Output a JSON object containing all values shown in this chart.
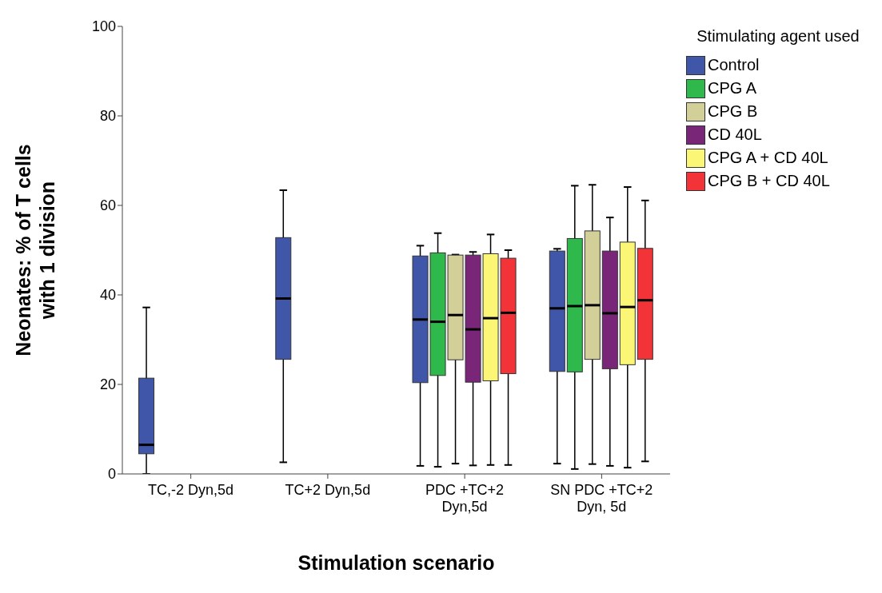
{
  "chart_data": {
    "type": "box",
    "xlabel": "Stimulation scenario",
    "ylabel": "Neonates: % of T cells with 1 division",
    "legend_title": "Stimulating agent used",
    "legend": "right",
    "grid": false,
    "categories": [
      "TC,-2 Dyn,5d",
      "TC+2 Dyn,5d",
      "PDC +TC+2 Dyn,5d",
      "SN PDC +TC+2 Dyn, 5d"
    ],
    "ylim": [
      0,
      100
    ],
    "yticks": [
      0,
      20,
      40,
      60,
      80,
      100
    ],
    "series": [
      {
        "name": "Control",
        "color": "#3f56a9",
        "boxes": [
          {
            "low": 0,
            "q1": 4.5,
            "median": 6.5,
            "q3": 21.4,
            "high": 37.2
          },
          {
            "low": 2.6,
            "q1": 25.6,
            "median": 39.2,
            "q3": 52.8,
            "high": 63.4
          },
          {
            "low": 1.8,
            "q1": 20.4,
            "median": 34.5,
            "q3": 48.7,
            "high": 51
          },
          {
            "low": 2.3,
            "q1": 22.9,
            "median": 37,
            "q3": 49.8,
            "high": 50.3
          }
        ]
      },
      {
        "name": "CPG A",
        "color": "#2fb84b",
        "boxes": [
          null,
          null,
          {
            "low": 1.6,
            "q1": 22,
            "median": 34,
            "q3": 49.4,
            "high": 53.8
          },
          {
            "low": 1.1,
            "q1": 22.8,
            "median": 37.5,
            "q3": 52.6,
            "high": 64.4
          }
        ]
      },
      {
        "name": "CPG B",
        "color": "#d3cf98",
        "boxes": [
          null,
          null,
          {
            "low": 2.3,
            "q1": 25.5,
            "median": 35.5,
            "q3": 48.9,
            "high": 49
          },
          {
            "low": 2.2,
            "q1": 25.6,
            "median": 37.7,
            "q3": 54.3,
            "high": 64.6
          }
        ]
      },
      {
        "name": "CD 40L",
        "color": "#7a2678",
        "boxes": [
          null,
          null,
          {
            "low": 1.9,
            "q1": 20.5,
            "median": 32.3,
            "q3": 48.9,
            "high": 49.6
          },
          {
            "low": 1.8,
            "q1": 23.5,
            "median": 35.9,
            "q3": 49.8,
            "high": 57.3
          }
        ]
      },
      {
        "name": "CPG A + CD 40L",
        "color": "#fbf675",
        "boxes": [
          null,
          null,
          {
            "low": 2,
            "q1": 20.8,
            "median": 34.8,
            "q3": 49.2,
            "high": 53.5
          },
          {
            "low": 1.4,
            "q1": 24.4,
            "median": 37.3,
            "q3": 51.8,
            "high": 64.1
          }
        ]
      },
      {
        "name": "CPG B + CD 40L",
        "color": "#f23338",
        "boxes": [
          null,
          null,
          {
            "low": 2,
            "q1": 22.4,
            "median": 36,
            "q3": 48.2,
            "high": 50
          },
          {
            "low": 2.8,
            "q1": 25.6,
            "median": 38.8,
            "q3": 50.4,
            "high": 61.1
          }
        ]
      }
    ]
  }
}
